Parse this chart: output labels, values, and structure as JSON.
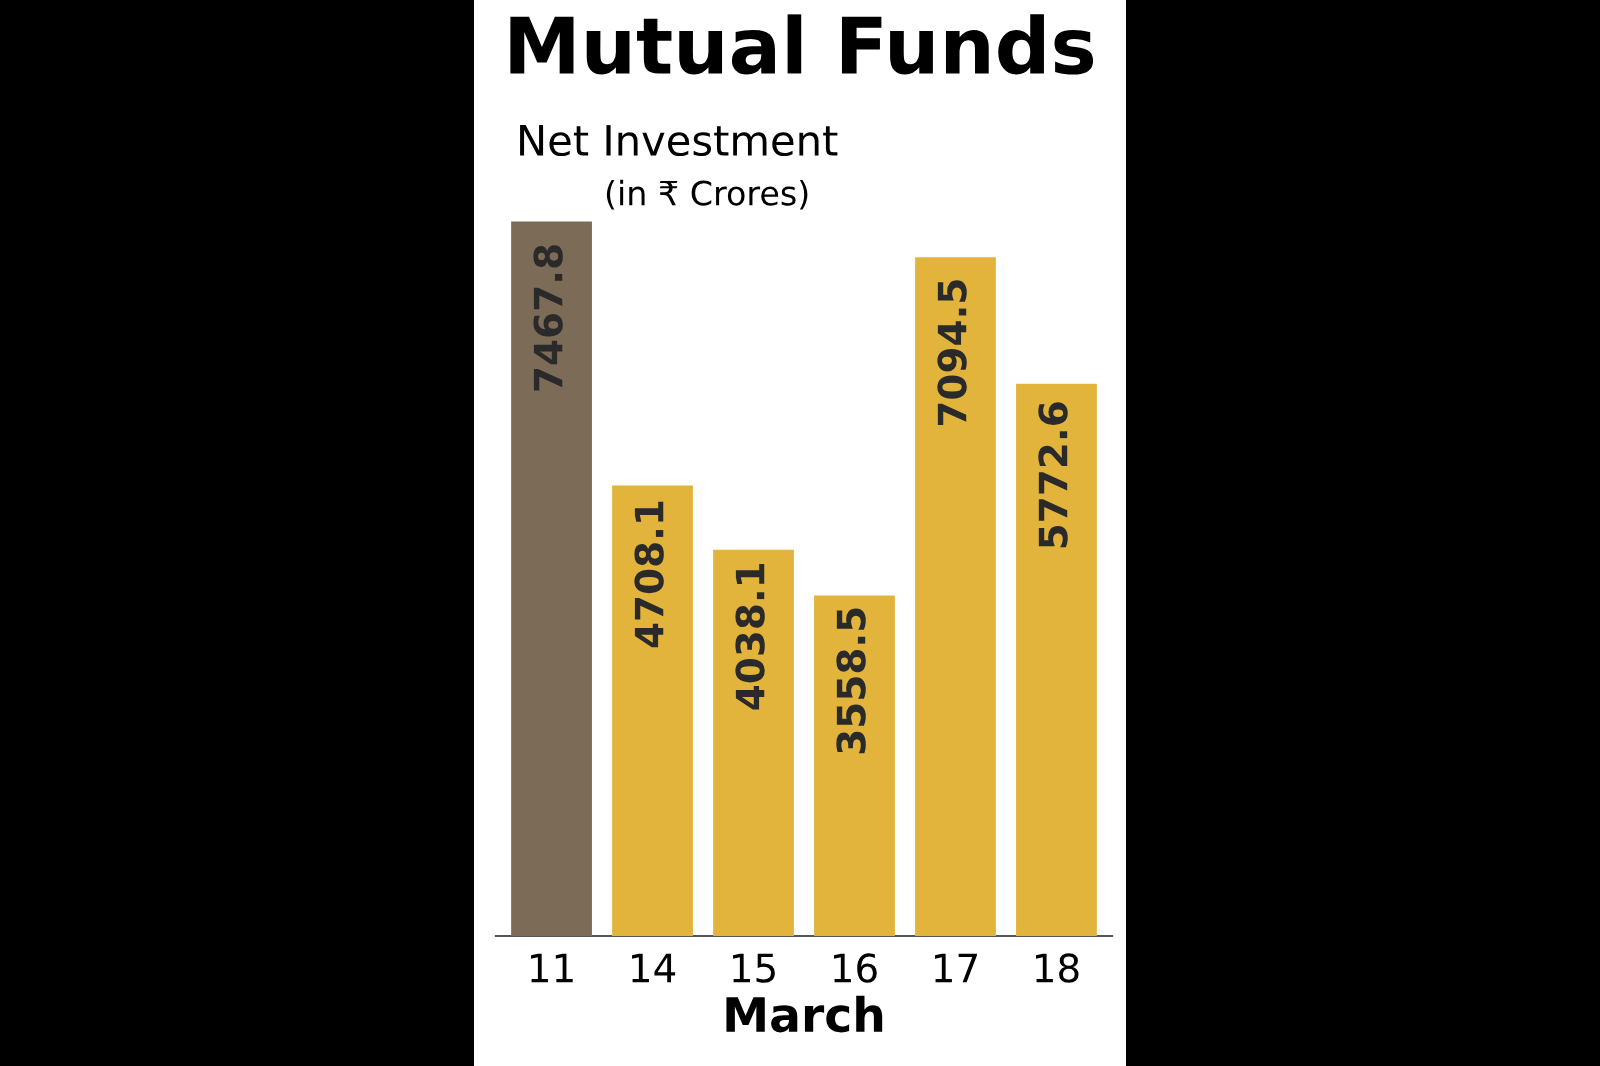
{
  "chart_data": {
    "type": "bar",
    "title": "Mutual Funds",
    "subtitle": "Net Investment",
    "annotations": [
      "(in ₹ Crores)"
    ],
    "xlabel": "March",
    "categories": [
      "11",
      "14",
      "15",
      "16",
      "17",
      "18"
    ],
    "values": [
      7467.8,
      4708.1,
      4038.1,
      3558.5,
      7094.5,
      5772.6
    ],
    "colors": [
      "#7b6b57",
      "#e2b43c",
      "#e2b43c",
      "#e2b43c",
      "#e2b43c",
      "#e2b43c"
    ],
    "data_labels": true
  }
}
